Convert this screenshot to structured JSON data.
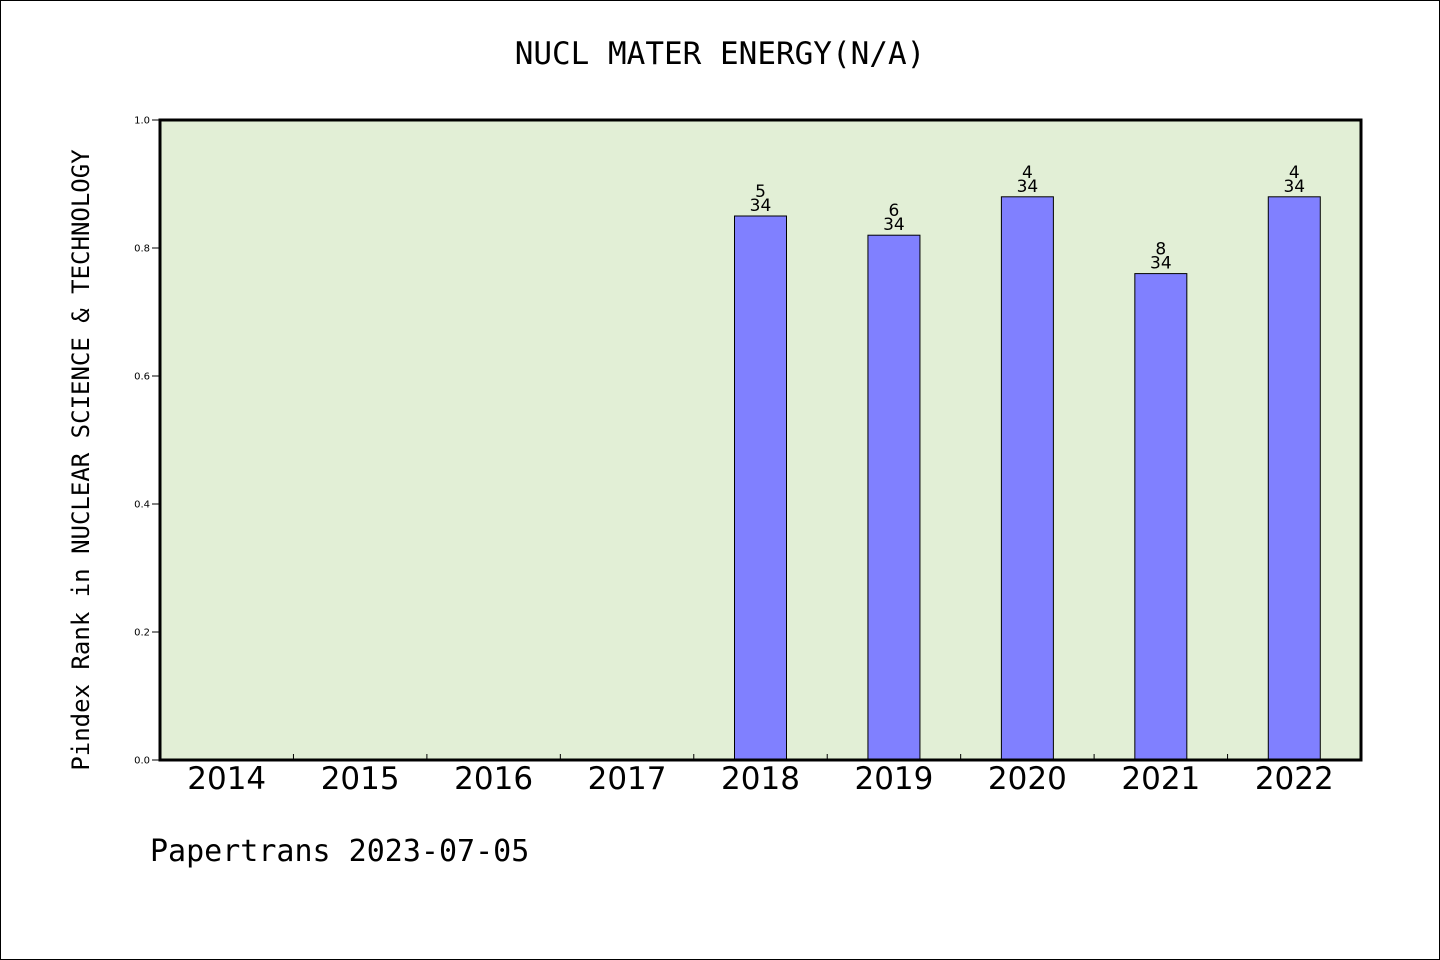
{
  "chart_data": {
    "type": "bar",
    "title": "NUCL MATER ENERGY(N/A)",
    "ylabel": "Pindex Rank in NUCLEAR SCIENCE & TECHNOLOGY",
    "xlabel": "",
    "ylim": [
      0,
      1.0
    ],
    "yticks": [
      "0.0",
      "0.2",
      "0.4",
      "0.6",
      "0.8",
      "1.0"
    ],
    "categories": [
      "2014",
      "2015",
      "2016",
      "2017",
      "2018",
      "2019",
      "2020",
      "2021",
      "2022"
    ],
    "values": [
      null,
      null,
      null,
      null,
      0.85,
      0.82,
      0.88,
      0.76,
      0.88
    ],
    "rank_labels": [
      "",
      "",
      "",
      "",
      "5",
      "6",
      "4",
      "8",
      "4"
    ],
    "total_labels": [
      "",
      "",
      "",
      "",
      "34",
      "34",
      "34",
      "34",
      "34"
    ],
    "grid": false,
    "colors": {
      "plot_bg": "#e2efd6",
      "bar": "#8080ff",
      "axis": "#000000"
    }
  },
  "footer": "Papertrans 2023-07-05"
}
